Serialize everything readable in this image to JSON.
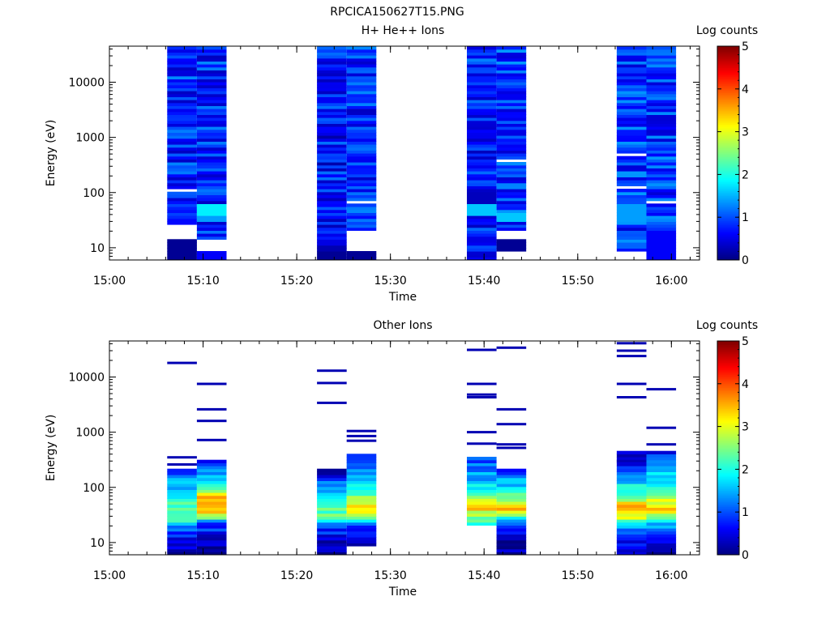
{
  "figure_title": "RPCICA150627T15.PNG",
  "chart_data": [
    {
      "type": "heatmap",
      "title": "H+ He++ Ions",
      "xlabel": "Time",
      "ylabel": "Energy (eV)",
      "colorbar_label": "Log counts",
      "colorbar_ticks": [
        "0",
        "1",
        "2",
        "3",
        "4",
        "5"
      ],
      "colorbar_range": [
        0,
        5
      ],
      "y_scale": "log",
      "ylim": [
        6,
        45000
      ],
      "y_ticks": [
        10,
        100,
        1000,
        10000
      ],
      "y_tick_labels": [
        "10",
        "100",
        "1000",
        "10000"
      ],
      "x_ticks": [
        "15:00",
        "15:10",
        "15:20",
        "15:30",
        "15:40",
        "15:50",
        "16:00"
      ],
      "xlim": [
        "15:00",
        "16:03"
      ],
      "grid": false,
      "scans": [
        {
          "start": "15:06:10",
          "end": "15:09:20",
          "emin": 6,
          "emax": 45000,
          "level": 0.8,
          "var": 0.5,
          "seed": 11,
          "overrides": [
            {
              "emin": 6,
              "emax": 15,
              "level": 0.1
            },
            {
              "emin": 15,
              "emax": 25,
              "level": null
            },
            {
              "emin": 108,
              "emax": 118,
              "level": null
            }
          ]
        },
        {
          "start": "15:09:20",
          "end": "15:12:30",
          "emin": 6,
          "emax": 45000,
          "level": 0.8,
          "var": 0.5,
          "seed": 23,
          "overrides": [
            {
              "emin": 6,
              "emax": 9,
              "level": 0.6
            },
            {
              "emin": 9,
              "emax": 14,
              "level": null
            },
            {
              "emin": 40,
              "emax": 60,
              "level": 1.8
            },
            {
              "emin": 30,
              "emax": 40,
              "level": 1.4
            }
          ]
        },
        {
          "start": "15:22:10",
          "end": "15:25:20",
          "emin": 6,
          "emax": 45000,
          "level": 0.7,
          "var": 0.5,
          "seed": 37,
          "overrides": [
            {
              "emin": 6,
              "emax": 9,
              "level": 0.1
            }
          ]
        },
        {
          "start": "15:25:20",
          "end": "15:28:30",
          "emin": 6,
          "emax": 45000,
          "level": 0.8,
          "var": 0.5,
          "seed": 41,
          "overrides": [
            {
              "emin": 6,
              "emax": 9,
              "level": 0.1
            },
            {
              "emin": 9,
              "emax": 20,
              "level": null
            },
            {
              "emin": 62,
              "emax": 72,
              "level": null
            }
          ]
        },
        {
          "start": "15:38:10",
          "end": "15:41:20",
          "emin": 6,
          "emax": 45000,
          "level": 0.8,
          "var": 0.5,
          "seed": 53,
          "overrides": [
            {
              "emin": 40,
              "emax": 60,
              "level": 1.6
            },
            {
              "emin": 60,
              "emax": 100,
              "level": 0.3
            },
            {
              "emin": 340,
              "emax": 380,
              "level": null
            }
          ]
        },
        {
          "start": "15:41:20",
          "end": "15:44:30",
          "emin": 9,
          "emax": 45000,
          "level": 0.9,
          "var": 0.5,
          "seed": 67,
          "overrides": [
            {
              "emin": 9,
              "emax": 15,
              "level": 0.1
            },
            {
              "emin": 15,
              "emax": 20,
              "level": null
            },
            {
              "emin": 30,
              "emax": 45,
              "level": 1.6
            },
            {
              "emin": 380,
              "emax": 420,
              "level": null
            }
          ]
        },
        {
          "start": "15:54:10",
          "end": "15:57:20",
          "emin": 9,
          "emax": 45000,
          "level": 0.9,
          "var": 0.5,
          "seed": 71,
          "overrides": [
            {
              "emin": 30,
              "emax": 60,
              "level": 1.4
            },
            {
              "emin": 118,
              "emax": 128,
              "level": null
            },
            {
              "emin": 460,
              "emax": 500,
              "level": null
            }
          ]
        },
        {
          "start": "15:57:20",
          "end": "16:00:30",
          "emin": 6,
          "emax": 45000,
          "level": 0.9,
          "var": 0.5,
          "seed": 83,
          "overrides": [
            {
              "emin": 62,
              "emax": 72,
              "level": null
            },
            {
              "emin": 6,
              "emax": 20,
              "level": 0.6
            }
          ]
        }
      ]
    },
    {
      "type": "heatmap",
      "title": "Other Ions",
      "xlabel": "Time",
      "ylabel": "Energy (eV)",
      "colorbar_label": "Log counts",
      "colorbar_ticks": [
        "0",
        "1",
        "2",
        "3",
        "4",
        "5"
      ],
      "colorbar_range": [
        0,
        5
      ],
      "y_scale": "log",
      "ylim": [
        6,
        45000
      ],
      "y_ticks": [
        10,
        100,
        1000,
        10000
      ],
      "y_tick_labels": [
        "10",
        "100",
        "1000",
        "10000"
      ],
      "x_ticks": [
        "15:00",
        "15:10",
        "15:20",
        "15:30",
        "15:40",
        "15:50",
        "16:00"
      ],
      "xlim": [
        "15:00",
        "16:03"
      ],
      "grid": false,
      "scans": [
        {
          "start": "15:06:10",
          "end": "15:09:20",
          "emin": 6,
          "emax": 210,
          "profile": [
            [
              6,
              0.1
            ],
            [
              10,
              0.4
            ],
            [
              20,
              1.2
            ],
            [
              30,
              2.6
            ],
            [
              45,
              2.3
            ],
            [
              80,
              1.8
            ],
            [
              150,
              1.3
            ],
            [
              210,
              0.9
            ]
          ],
          "var": 0.35,
          "seed": 101,
          "lines": [
            18000,
            350,
            260
          ]
        },
        {
          "start": "15:09:20",
          "end": "15:12:30",
          "emin": 6,
          "emax": 320,
          "profile": [
            [
              6,
              0.1
            ],
            [
              10,
              0.3
            ],
            [
              22,
              1.0
            ],
            [
              35,
              3.2
            ],
            [
              50,
              4.0
            ],
            [
              70,
              3.3
            ],
            [
              120,
              2.0
            ],
            [
              200,
              1.2
            ],
            [
              320,
              0.4
            ]
          ],
          "var": 0.35,
          "seed": 113,
          "lines": [
            7500,
            2600,
            1600,
            720
          ]
        },
        {
          "start": "15:22:10",
          "end": "15:25:20",
          "emin": 6,
          "emax": 210,
          "profile": [
            [
              6,
              0.1
            ],
            [
              10,
              0.4
            ],
            [
              20,
              0.9
            ],
            [
              30,
              2.4
            ],
            [
              45,
              2.4
            ],
            [
              80,
              1.8
            ],
            [
              150,
              0.8
            ],
            [
              210,
              0.2
            ]
          ],
          "var": 0.35,
          "seed": 127,
          "lines": [
            13000,
            7800,
            3400
          ]
        },
        {
          "start": "15:25:20",
          "end": "15:28:30",
          "emin": 9,
          "emax": 420,
          "profile": [
            [
              9,
              0.1
            ],
            [
              20,
              1.0
            ],
            [
              30,
              2.6
            ],
            [
              45,
              3.2
            ],
            [
              65,
              2.6
            ],
            [
              120,
              1.8
            ],
            [
              250,
              1.3
            ],
            [
              420,
              0.5
            ]
          ],
          "var": 0.35,
          "seed": 131,
          "lines": [
            1050,
            850,
            700
          ]
        },
        {
          "start": "15:38:10",
          "end": "15:41:20",
          "emin": 20,
          "emax": 380,
          "profile": [
            [
              20,
              1.8
            ],
            [
              30,
              2.6
            ],
            [
              45,
              3.4
            ],
            [
              70,
              2.3
            ],
            [
              120,
              1.6
            ],
            [
              250,
              1.2
            ],
            [
              380,
              0.8
            ]
          ],
          "var": 0.35,
          "seed": 149,
          "lines": [
            31000,
            7500,
            4800,
            4300,
            1000,
            620
          ]
        },
        {
          "start": "15:41:20",
          "end": "15:44:30",
          "emin": 6,
          "emax": 210,
          "profile": [
            [
              6,
              0.1
            ],
            [
              15,
              0.4
            ],
            [
              25,
              1.6
            ],
            [
              40,
              3.4
            ],
            [
              60,
              2.5
            ],
            [
              100,
              1.8
            ],
            [
              160,
              1.2
            ],
            [
              210,
              0.4
            ]
          ],
          "var": 0.35,
          "seed": 151,
          "lines": [
            34000,
            2600,
            1400,
            600,
            520
          ]
        },
        {
          "start": "15:54:10",
          "end": "15:57:20",
          "emin": 6,
          "emax": 450,
          "profile": [
            [
              6,
              0.6
            ],
            [
              15,
              0.8
            ],
            [
              22,
              1.6
            ],
            [
              30,
              3.2
            ],
            [
              45,
              3.6
            ],
            [
              70,
              2.4
            ],
            [
              120,
              1.7
            ],
            [
              220,
              0.8
            ],
            [
              450,
              0.3
            ]
          ],
          "var": 0.35,
          "seed": 163,
          "lines": [
            41000,
            30000,
            24000,
            7500,
            4300,
            300
          ]
        },
        {
          "start": "15:57:20",
          "end": "16:00:30",
          "emin": 6,
          "emax": 460,
          "profile": [
            [
              6,
              0.1
            ],
            [
              15,
              0.8
            ],
            [
              20,
              1.4
            ],
            [
              30,
              2.6
            ],
            [
              45,
              3.4
            ],
            [
              70,
              2.6
            ],
            [
              120,
              2.0
            ],
            [
              250,
              1.3
            ],
            [
              460,
              0.6
            ]
          ],
          "var": 0.35,
          "seed": 179,
          "lines": [
            6000,
            1200,
            600
          ]
        }
      ]
    }
  ]
}
